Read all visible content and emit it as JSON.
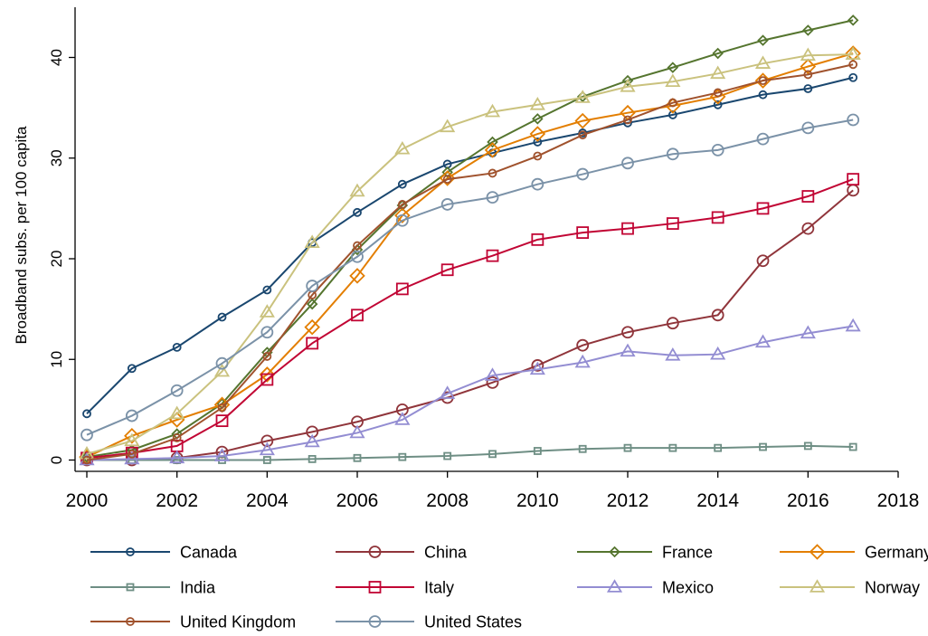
{
  "chart_data": {
    "type": "line",
    "title": "",
    "xlabel": "",
    "ylabel": "Broadband subs. per 100 capita",
    "xlim": [
      2000,
      2018
    ],
    "ylim": [
      0,
      45
    ],
    "x_ticks": [
      2000,
      2002,
      2004,
      2006,
      2008,
      2010,
      2012,
      2014,
      2016,
      2018
    ],
    "y_ticks": [
      0,
      10,
      20,
      30,
      40
    ],
    "x_tick_labels": [
      "2000",
      "2002",
      "2004",
      "2006",
      "2008",
      "2010",
      "2012",
      "2014",
      "2016",
      "2018"
    ],
    "y_tick_labels": [
      "0",
      "10",
      "20",
      "30",
      "40"
    ],
    "grid": false,
    "legend_position": "bottom",
    "x": [
      2000,
      2001,
      2002,
      2003,
      2004,
      2005,
      2006,
      2007,
      2008,
      2009,
      2010,
      2011,
      2012,
      2013,
      2014,
      2015,
      2016,
      2017
    ],
    "series": [
      {
        "name": "Canada",
        "color": "#1a476f",
        "marker": "circle-small",
        "values": [
          4.6,
          9.1,
          11.2,
          14.2,
          16.9,
          21.6,
          24.6,
          27.4,
          29.4,
          30.5,
          31.6,
          32.5,
          33.5,
          34.3,
          35.3,
          36.3,
          36.9,
          38.0
        ]
      },
      {
        "name": "China",
        "color": "#90353b",
        "marker": "circle",
        "values": [
          0.0,
          0.0,
          0.2,
          0.8,
          1.9,
          2.8,
          3.8,
          5.0,
          6.2,
          7.7,
          9.4,
          11.4,
          12.7,
          13.6,
          14.4,
          19.8,
          23.0,
          26.8
        ]
      },
      {
        "name": "France",
        "color": "#55752f",
        "marker": "diamond-small",
        "values": [
          0.3,
          1.0,
          2.6,
          5.6,
          10.7,
          15.5,
          20.9,
          25.3,
          28.6,
          31.6,
          33.9,
          36.1,
          37.7,
          39.0,
          40.4,
          41.7,
          42.7,
          43.7
        ]
      },
      {
        "name": "Germany",
        "color": "#e37e00",
        "marker": "diamond",
        "values": [
          0.3,
          2.4,
          4.0,
          5.5,
          8.5,
          13.2,
          18.3,
          24.3,
          28.0,
          30.8,
          32.4,
          33.7,
          34.5,
          35.2,
          36.1,
          37.7,
          39.1,
          40.4
        ]
      },
      {
        "name": "India",
        "color": "#6e8e84",
        "marker": "square-small",
        "values": [
          0.0,
          0.0,
          0.0,
          0.0,
          0.0,
          0.1,
          0.2,
          0.3,
          0.4,
          0.6,
          0.9,
          1.1,
          1.2,
          1.2,
          1.2,
          1.3,
          1.4,
          1.3
        ]
      },
      {
        "name": "Italy",
        "color": "#c10534",
        "marker": "square",
        "values": [
          0.2,
          0.7,
          1.4,
          3.9,
          8.0,
          11.6,
          14.4,
          17.0,
          18.9,
          20.3,
          21.9,
          22.6,
          23.0,
          23.5,
          24.1,
          25.0,
          26.2,
          27.9
        ]
      },
      {
        "name": "Mexico",
        "color": "#938dd2",
        "marker": "triangle",
        "values": [
          0.0,
          0.1,
          0.2,
          0.4,
          1.0,
          1.8,
          2.7,
          4.0,
          6.6,
          8.4,
          9.0,
          9.7,
          10.8,
          10.4,
          10.5,
          11.7,
          12.6,
          13.3
        ]
      },
      {
        "name": "Norway",
        "color": "#cac27e",
        "marker": "triangle",
        "values": [
          0.6,
          1.9,
          4.6,
          8.8,
          14.7,
          21.6,
          26.7,
          30.9,
          33.1,
          34.6,
          35.3,
          36.0,
          37.1,
          37.6,
          38.4,
          39.4,
          40.2,
          40.3
        ]
      },
      {
        "name": "United Kingdom",
        "color": "#a0522d",
        "marker": "circle-small",
        "values": [
          0.0,
          0.6,
          2.2,
          5.2,
          10.3,
          16.4,
          21.3,
          25.4,
          27.9,
          28.5,
          30.2,
          32.3,
          33.8,
          35.5,
          36.5,
          37.7,
          38.3,
          39.3
        ]
      },
      {
        "name": "United States",
        "color": "#7b92a8",
        "marker": "circle",
        "values": [
          2.5,
          4.4,
          6.9,
          9.6,
          12.7,
          17.3,
          20.2,
          23.8,
          25.4,
          26.1,
          27.4,
          28.4,
          29.5,
          30.4,
          30.8,
          31.9,
          33.0,
          33.8
        ]
      }
    ]
  }
}
